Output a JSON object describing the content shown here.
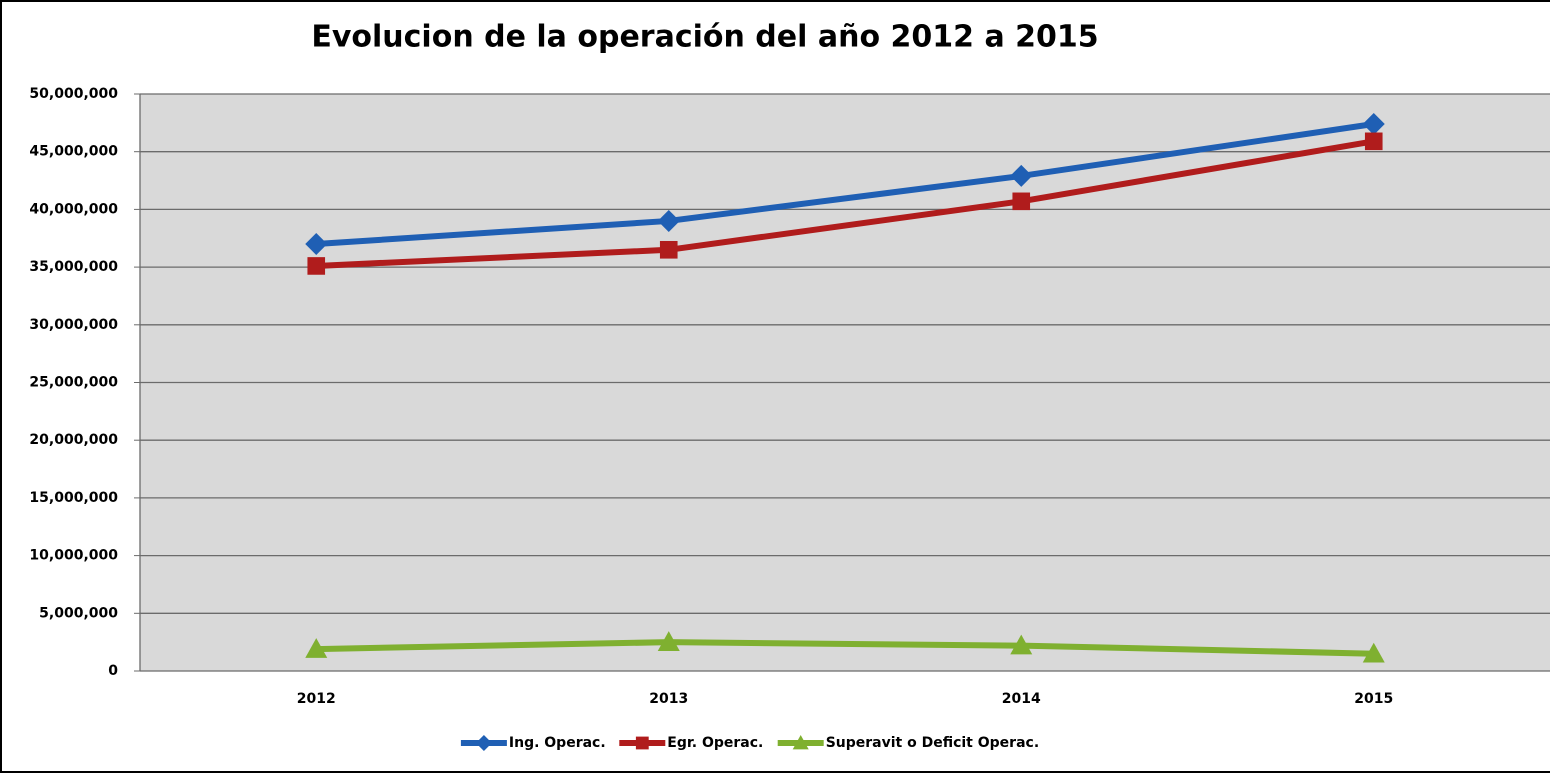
{
  "chart_data": {
    "type": "line",
    "title": "Evolucion de la operación del año 2012 a 2015",
    "categories": [
      "2012",
      "2013",
      "2014",
      "2015"
    ],
    "series": [
      {
        "name": "Ing. Operac.",
        "color": "#1f5fb4",
        "marker": "diamond",
        "values": [
          37000000,
          39000000,
          42900000,
          47400000
        ]
      },
      {
        "name": "Egr. Operac.",
        "color": "#b01c1c",
        "marker": "square",
        "values": [
          35100000,
          36500000,
          40700000,
          45900000
        ]
      },
      {
        "name": "Superavit o Deficit Operac.",
        "color": "#7fb030",
        "marker": "triangle",
        "values": [
          1900000,
          2500000,
          2200000,
          1500000
        ]
      }
    ],
    "ylim": [
      0,
      50000000
    ],
    "yticks": [
      0,
      {
        "value": 5000000,
        "label": "5,000,000"
      },
      {
        "value": 10000000,
        "label": "10,000,000"
      },
      {
        "value": 15000000,
        "label": "15,000,000"
      },
      {
        "value": 20000000,
        "label": "20,000,000"
      },
      {
        "value": 25000000,
        "label": "25,000,000"
      },
      {
        "value": 30000000,
        "label": "30,000,000"
      },
      {
        "value": 35000000,
        "label": "35,000,000"
      },
      {
        "value": 40000000,
        "label": "40,000,000"
      },
      {
        "value": 45000000,
        "label": "45,000,000"
      },
      {
        "value": 50000000,
        "label": "50,000,000"
      }
    ],
    "grid": true,
    "legend": "bottom"
  }
}
